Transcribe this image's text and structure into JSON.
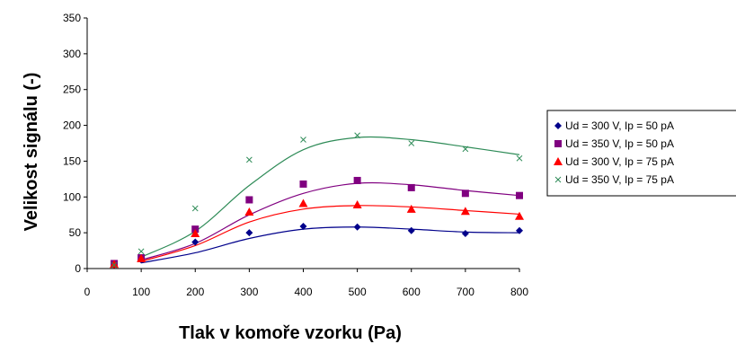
{
  "chart_data": {
    "type": "scatter",
    "title": "",
    "xlabel": "Tlak v komoře vzorku (Pa)",
    "ylabel": "Velikost signálu (-)",
    "xlim": [
      0,
      800
    ],
    "ylim": [
      0,
      350
    ],
    "x_ticks": [
      0,
      100,
      200,
      300,
      400,
      500,
      600,
      700,
      800
    ],
    "y_ticks": [
      0,
      50,
      100,
      150,
      200,
      250,
      300,
      350
    ],
    "grid": false,
    "legend_position": "right",
    "series": [
      {
        "name": "Ud = 300 V, Ip = 50 pA",
        "marker": "diamond",
        "color": "#00008B",
        "x": [
          50,
          100,
          200,
          300,
          400,
          500,
          600,
          700,
          800
        ],
        "y": [
          5,
          12,
          37,
          50,
          59,
          58,
          53,
          49,
          53
        ],
        "trend": [
          [
            100,
            8
          ],
          [
            200,
            22
          ],
          [
            300,
            42
          ],
          [
            400,
            55
          ],
          [
            500,
            58
          ],
          [
            600,
            55
          ],
          [
            700,
            51
          ],
          [
            800,
            50
          ]
        ]
      },
      {
        "name": "Ud = 350 V, Ip = 50 pA",
        "marker": "square",
        "color": "#800080",
        "x": [
          50,
          100,
          200,
          300,
          400,
          500,
          600,
          700,
          800
        ],
        "y": [
          7,
          15,
          55,
          96,
          118,
          123,
          113,
          105,
          102
        ],
        "trend": [
          [
            100,
            12
          ],
          [
            200,
            35
          ],
          [
            300,
            75
          ],
          [
            400,
            105
          ],
          [
            500,
            119
          ],
          [
            600,
            117
          ],
          [
            700,
            109
          ],
          [
            800,
            102
          ]
        ]
      },
      {
        "name": "Ud = 300 V, Ip = 75 pA",
        "marker": "triangle",
        "color": "#FF0000",
        "x": [
          50,
          100,
          200,
          300,
          400,
          500,
          600,
          700,
          800
        ],
        "y": [
          6,
          14,
          49,
          79,
          91,
          89,
          83,
          80,
          73
        ],
        "trend": [
          [
            100,
            10
          ],
          [
            200,
            32
          ],
          [
            300,
            65
          ],
          [
            400,
            83
          ],
          [
            500,
            88
          ],
          [
            600,
            86
          ],
          [
            700,
            81
          ],
          [
            800,
            76
          ]
        ]
      },
      {
        "name": "Ud = 350 V, Ip = 75 pA",
        "marker": "x",
        "color": "#2E8B57",
        "x": [
          50,
          100,
          200,
          300,
          400,
          500,
          600,
          700,
          800
        ],
        "y": [
          5,
          24,
          84,
          152,
          180,
          186,
          175,
          167,
          154
        ],
        "trend": [
          [
            100,
            16
          ],
          [
            200,
            52
          ],
          [
            300,
            116
          ],
          [
            400,
            166
          ],
          [
            500,
            183
          ],
          [
            600,
            180
          ],
          [
            700,
            170
          ],
          [
            800,
            159
          ]
        ]
      }
    ]
  }
}
